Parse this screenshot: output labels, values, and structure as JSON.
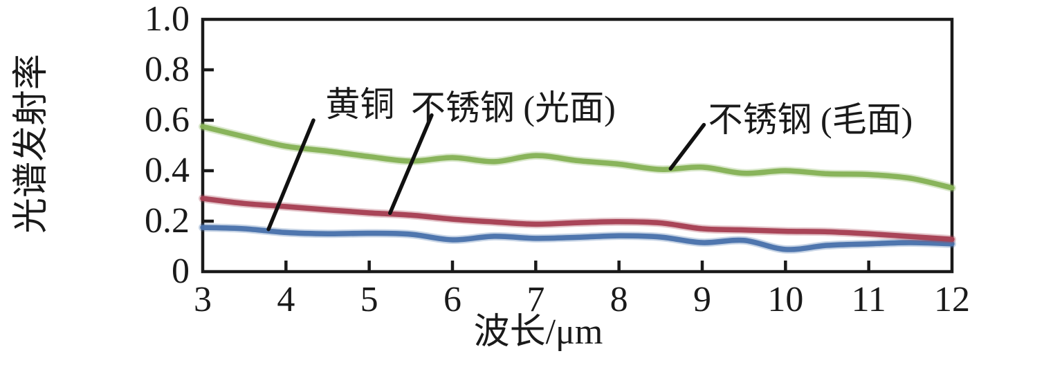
{
  "chart_data": {
    "type": "line",
    "title": "",
    "xlabel": "波长/μm",
    "ylabel": "光谱发射率",
    "xlim": [
      3,
      12
    ],
    "ylim": [
      0,
      1.0
    ],
    "grid": false,
    "legend_position": "inline-annotations",
    "axis_color": "#1a1a1a",
    "background_color": "#ffffff",
    "x_ticks": [
      3,
      4,
      5,
      6,
      7,
      8,
      9,
      10,
      11,
      12
    ],
    "y_ticks": [
      0,
      0.2,
      0.4,
      0.6,
      0.8,
      1.0
    ],
    "y_tick_labels": [
      "0",
      "0.2",
      "0.4",
      "0.6",
      "0.8",
      "1.0"
    ],
    "x": [
      3,
      3.5,
      4,
      4.5,
      5,
      5.5,
      6,
      6.5,
      7,
      7.5,
      8,
      8.5,
      9,
      9.5,
      10,
      10.5,
      11,
      11.5,
      12
    ],
    "series": [
      {
        "name": "黄铜",
        "key": "brass",
        "color": "#4a73ab",
        "values": [
          0.175,
          0.17,
          0.155,
          0.15,
          0.152,
          0.148,
          0.126,
          0.14,
          0.132,
          0.136,
          0.142,
          0.137,
          0.115,
          0.124,
          0.088,
          0.104,
          0.11,
          0.115,
          0.11
        ]
      },
      {
        "name": "不锈钢 (光面)",
        "key": "stainless-smooth",
        "color": "#a64154",
        "values": [
          0.29,
          0.27,
          0.258,
          0.245,
          0.233,
          0.224,
          0.208,
          0.197,
          0.188,
          0.194,
          0.198,
          0.193,
          0.17,
          0.165,
          0.16,
          0.158,
          0.15,
          0.139,
          0.128
        ]
      },
      {
        "name": "不锈钢 (毛面)",
        "key": "stainless-rough",
        "color": "#86b257",
        "values": [
          0.575,
          0.535,
          0.497,
          0.478,
          0.456,
          0.438,
          0.452,
          0.436,
          0.46,
          0.44,
          0.426,
          0.405,
          0.414,
          0.39,
          0.4,
          0.388,
          0.385,
          0.37,
          0.332
        ]
      }
    ],
    "annotations": [
      {
        "text": "黄铜",
        "series": "brass",
        "x": 4.89,
        "y": 0.663,
        "leader": {
          "x1": 4.33,
          "y1": 0.6,
          "x2": 3.79,
          "y2": 0.168
        }
      },
      {
        "text": "不锈钢 (光面)",
        "series": "stainless-smooth",
        "x": 6.73,
        "y": 0.649,
        "leader": {
          "x1": 5.75,
          "y1": 0.62,
          "x2": 5.25,
          "y2": 0.232
        }
      },
      {
        "text": "不锈钢 (毛面)",
        "series": "stainless-rough",
        "x": 10.3,
        "y": 0.603,
        "leader": {
          "x1": 9.02,
          "y1": 0.582,
          "x2": 8.62,
          "y2": 0.408
        }
      }
    ]
  }
}
